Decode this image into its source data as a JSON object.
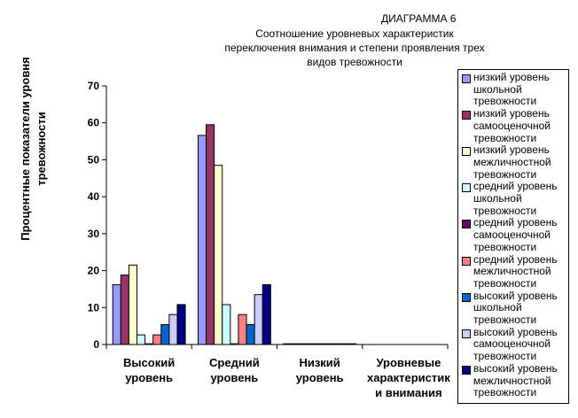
{
  "chart_data": {
    "type": "bar",
    "label": "ДИАГРАММА 6",
    "title": "Соотношение уровневых характеристик переключения внимания и степени проявления трех видов тревожности",
    "ylabel": "Процентные показатели уровня тревожности",
    "xlabel": "",
    "ylim": [
      0,
      70
    ],
    "yticks": [
      0,
      10,
      20,
      30,
      40,
      50,
      60,
      70
    ],
    "categories": [
      "Высокий уровень",
      "Средний уровень",
      "Низкий уровень",
      "Уровневые характеристики внимания"
    ],
    "category_display": [
      "Высокий\nуровень",
      "Средний\nуровень",
      "Низкий\nуровень",
      "Уровневые\nхарактеристик\nи внимания"
    ],
    "legend_position": "right",
    "series": [
      {
        "name": "низкий уровень школьной тревожности",
        "color": "#9999ff",
        "values": [
          16.2,
          56.6,
          0.2,
          null
        ]
      },
      {
        "name": "низкий уровень самооценочной тревожности",
        "color": "#993366",
        "values": [
          18.8,
          59.5,
          0.2,
          null
        ]
      },
      {
        "name": "низкий уровень межличностной тревожности",
        "color": "#ffffcc",
        "values": [
          21.5,
          48.5,
          0.2,
          null
        ]
      },
      {
        "name": "средний уровень школьной тревожности",
        "color": "#ccffff",
        "values": [
          2.6,
          10.8,
          0.2,
          null
        ]
      },
      {
        "name": "средний уровень самооценочной тревожности",
        "color": "#660066",
        "values": [
          0.2,
          0.2,
          0.2,
          null
        ]
      },
      {
        "name": "средний уровень межличностной тревожности",
        "color": "#ff8080",
        "values": [
          2.6,
          8.1,
          0.2,
          null
        ]
      },
      {
        "name": "высокий уровень школьной тревожности",
        "color": "#0066cc",
        "values": [
          5.4,
          5.4,
          0.2,
          null
        ]
      },
      {
        "name": "высокий уровень самооценочной тревожности",
        "color": "#ccccff",
        "values": [
          8.1,
          13.5,
          0.2,
          null
        ]
      },
      {
        "name": "высокий уровень межличностной тревожности",
        "color": "#000080",
        "values": [
          10.8,
          16.2,
          0.2,
          null
        ]
      }
    ]
  }
}
